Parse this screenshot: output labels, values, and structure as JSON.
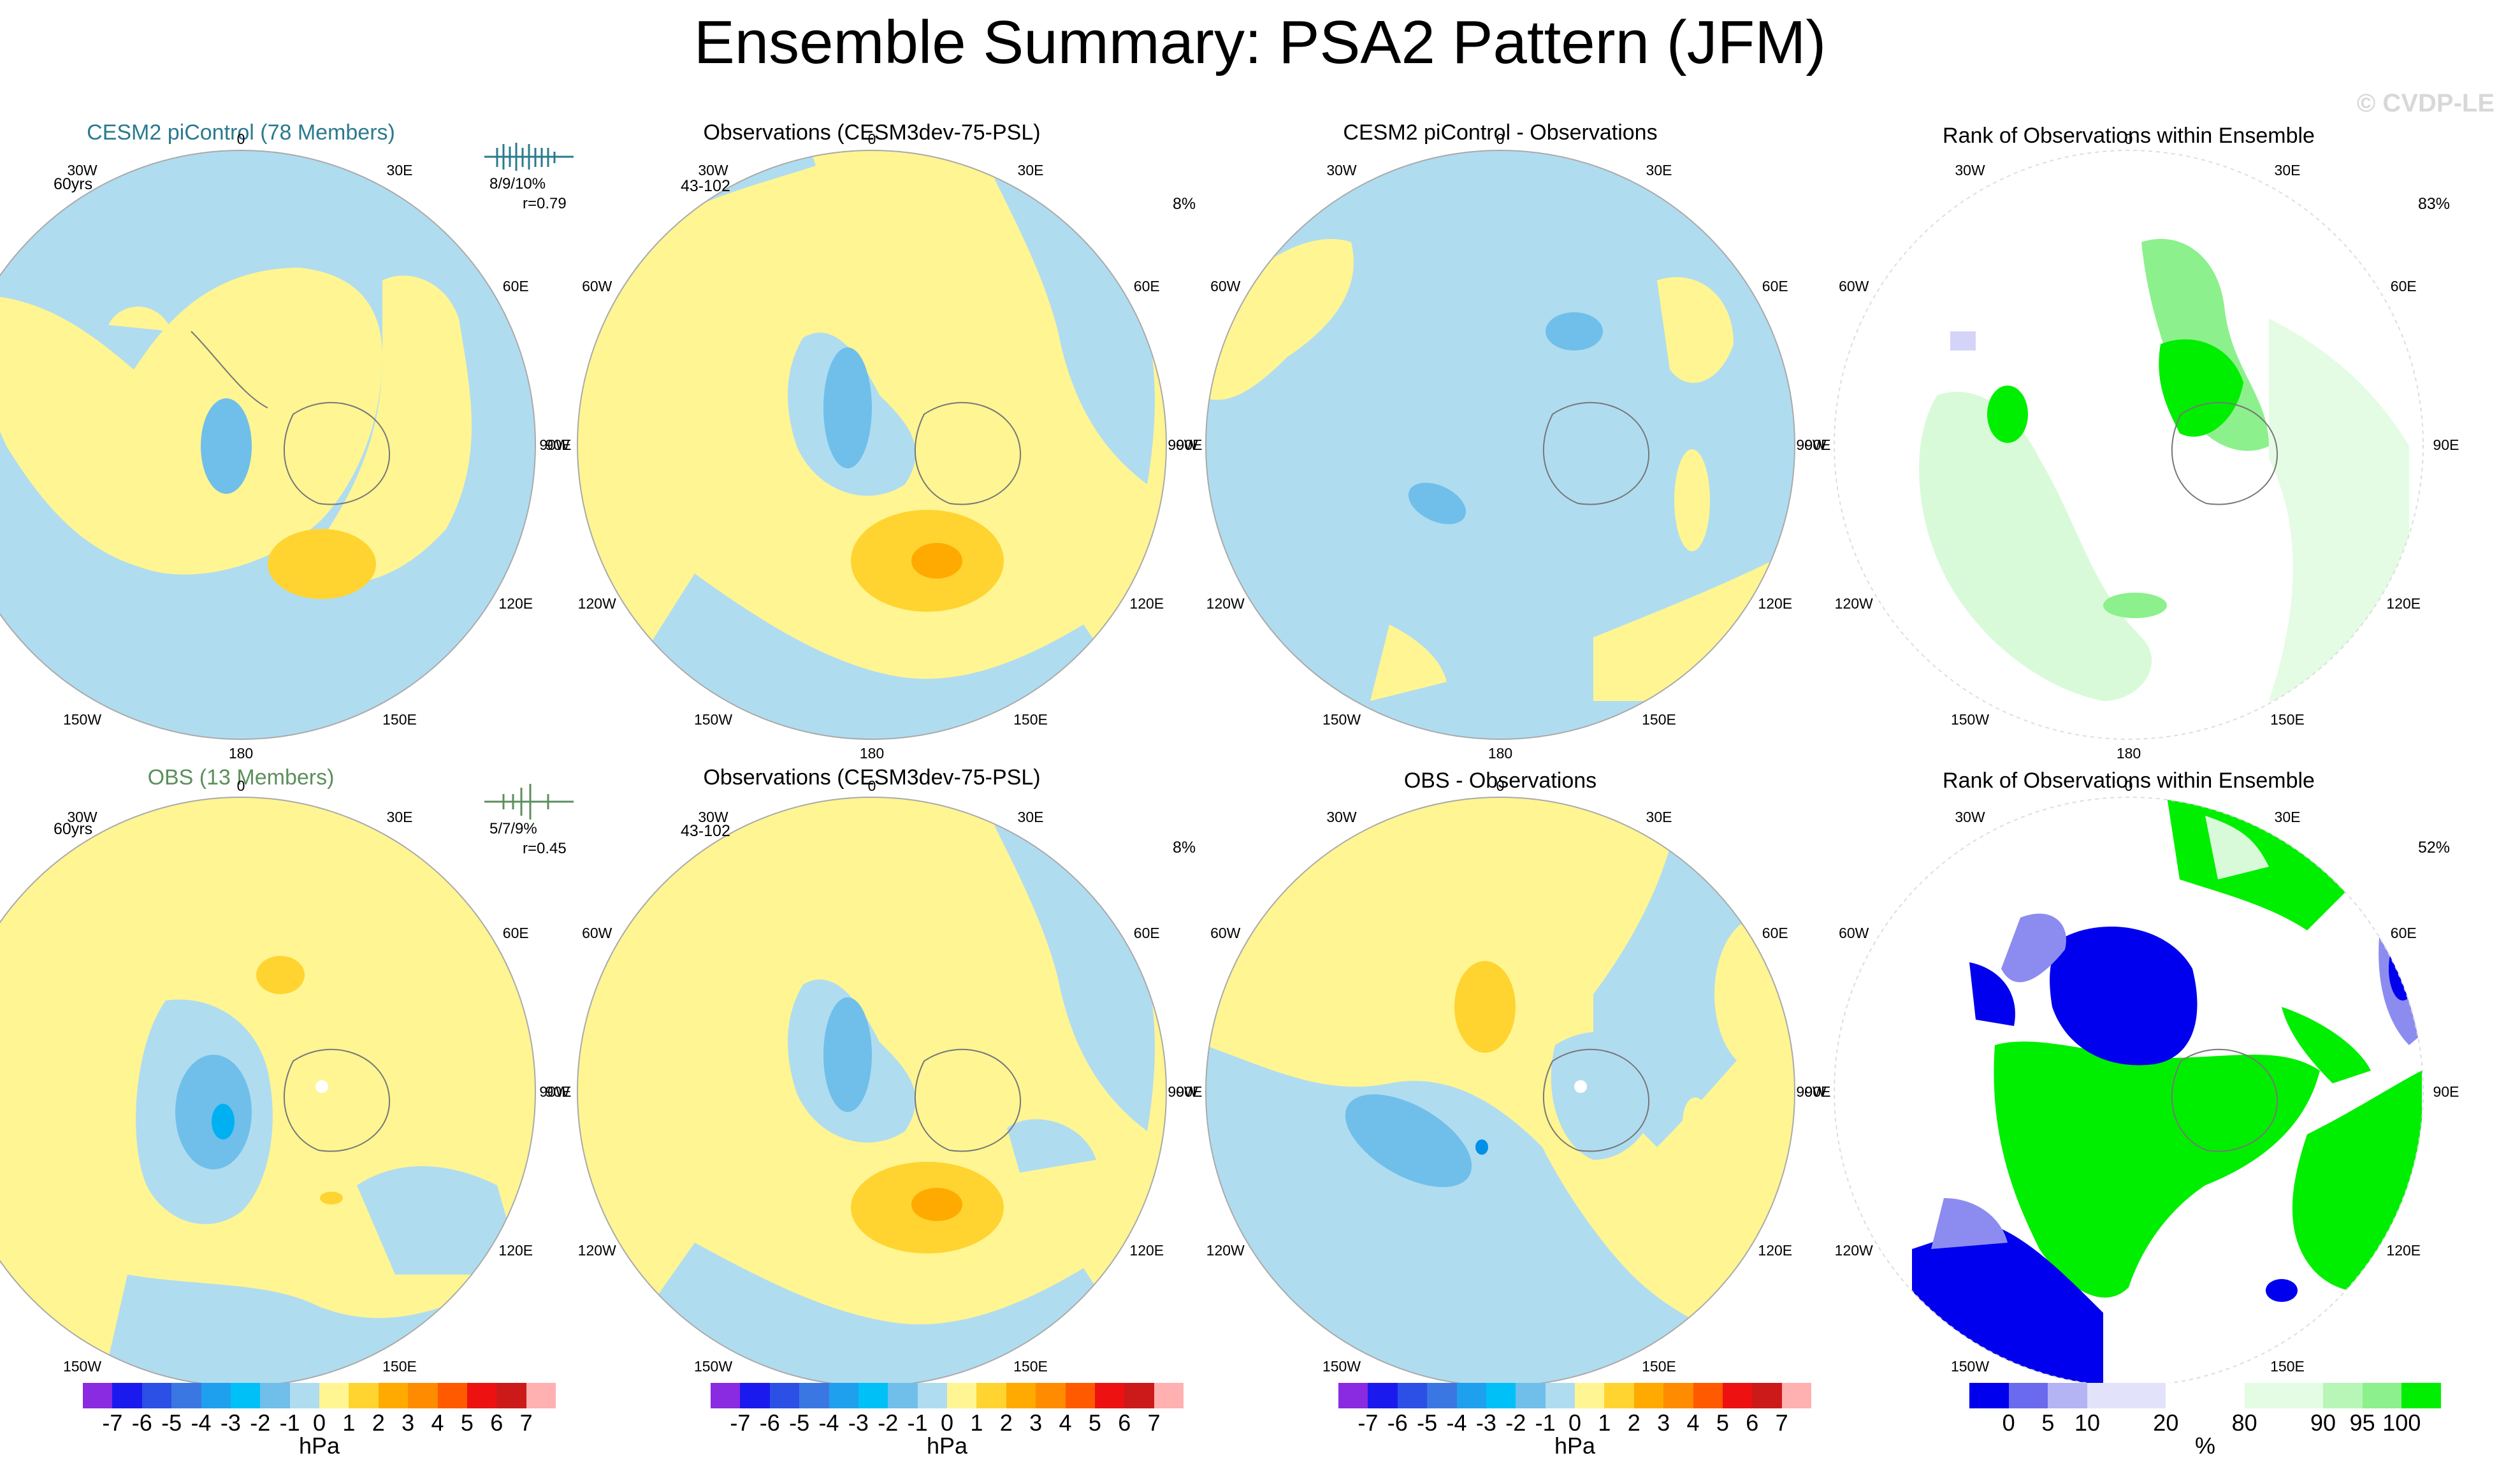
{
  "title": "Ensemble Summary: PSA2 Pattern (JFM)",
  "watermark": "© CVDP-LE",
  "lon_labels": [
    "0",
    "30E",
    "60E",
    "90E",
    "120E",
    "150E",
    "180",
    "150W",
    "120W",
    "90W",
    "60W",
    "30W"
  ],
  "colors": {
    "neg1": "#b0dcf0",
    "neg2": "#6fbfea",
    "neg3": "#00b0f0",
    "neg4": "#0090e8",
    "pos1": "#fff593",
    "pos2": "#ffd431",
    "pos3": "#ffaa00",
    "rank_blue_dark": "#0000ee",
    "rank_blue_mid": "#8c8cf0",
    "rank_blue_light": "#d4d4f8",
    "rank_green_light": "#d8fad8",
    "rank_green_mid": "#8cf08c",
    "rank_green": "#00ee00",
    "cesm_title": "#2a7a8f",
    "obs_title": "#5c8f5c"
  },
  "rows": [
    {
      "panels": [
        {
          "title": "CESM2 piControl (78 Members)",
          "left_info": "60yrs",
          "stat_pct": "8/9/10%",
          "stat_r": "r=0.79",
          "right_info": ""
        },
        {
          "title": "Observations (CESM3dev-75-PSL)",
          "left_info": "43-102",
          "right_info": "8%"
        },
        {
          "title": "CESM2 piControl - Observations",
          "left_info": "",
          "right_info": ""
        },
        {
          "title": "Rank of Observations within Ensemble",
          "left_info": "",
          "right_info": "83%"
        }
      ]
    },
    {
      "panels": [
        {
          "title": "OBS (13 Members)",
          "left_info": "60yrs",
          "stat_pct": "5/7/9%",
          "stat_r": "r=0.45",
          "right_info": ""
        },
        {
          "title": "Observations (CESM3dev-75-PSL)",
          "left_info": "43-102",
          "right_info": "8%"
        },
        {
          "title": "OBS - Observations",
          "left_info": "",
          "right_info": ""
        },
        {
          "title": "Rank of Observations within Ensemble",
          "left_info": "",
          "right_info": "52%"
        }
      ]
    }
  ],
  "colorbar_hpa": {
    "colors": [
      "#8a2be2",
      "#1a1aee",
      "#2c4fe6",
      "#3a77e2",
      "#1fa0ee",
      "#00c0f8",
      "#6fbfea",
      "#b0dcf0",
      "#fff593",
      "#ffd431",
      "#ffaa00",
      "#ff8c00",
      "#ff5a00",
      "#ee1111",
      "#cc1a1a",
      "#ffb0b0"
    ],
    "ticks": [
      "-7",
      "-6",
      "-5",
      "-4",
      "-3",
      "-2",
      "-1",
      "0",
      "1",
      "2",
      "3",
      "4",
      "5",
      "6",
      "7"
    ],
    "units": "hPa"
  },
  "colorbar_rank": {
    "colors": [
      "#0000ee",
      "#6a6aee",
      "#b4b4f4",
      "#e2e2fb",
      "#e2e2fb",
      "#ffffff",
      "#ffffff",
      "#e4fbe4",
      "#e4fbe4",
      "#b8f6b8",
      "#8cf08c",
      "#00ee00"
    ],
    "ticks": [
      "0",
      "5",
      "10",
      "20",
      "80",
      "90",
      "95",
      "100"
    ],
    "units": "%"
  }
}
